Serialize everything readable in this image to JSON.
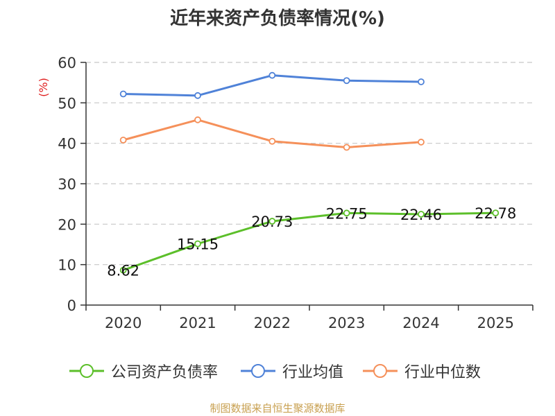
{
  "title": "近年来资产负债率情况(%)",
  "footer": "制图数据来自恒生聚源数据库",
  "colors": {
    "company": "#5cbf2a",
    "industry_avg": "#4f82d8",
    "industry_median": "#f5905a",
    "grid": "#c8c8c8",
    "axis": "#333333",
    "ylabel": "#e02020"
  },
  "chart_data": {
    "type": "line",
    "title": "近年来资产负债率情况(%)",
    "ylabel": "(%)",
    "xlabel": "",
    "x": [
      "2020",
      "2021",
      "2022",
      "2023",
      "2024",
      "2025"
    ],
    "ylim": [
      0,
      60
    ],
    "yticks": [
      0,
      10,
      20,
      30,
      40,
      50,
      60
    ],
    "grid": true,
    "legend_position": "bottom",
    "series": [
      {
        "name": "公司资产负债率",
        "key": "company",
        "values": [
          8.62,
          15.15,
          20.73,
          22.75,
          22.46,
          22.78
        ],
        "labels": [
          "8.62",
          "15.15",
          "20.73",
          "22.75",
          "22.46",
          "22.78"
        ]
      },
      {
        "name": "行业均值",
        "key": "industry_avg",
        "values": [
          52.2,
          51.8,
          56.8,
          55.5,
          55.2,
          null
        ]
      },
      {
        "name": "行业中位数",
        "key": "industry_median",
        "values": [
          40.8,
          45.8,
          40.5,
          39.0,
          40.3,
          null
        ]
      }
    ]
  }
}
